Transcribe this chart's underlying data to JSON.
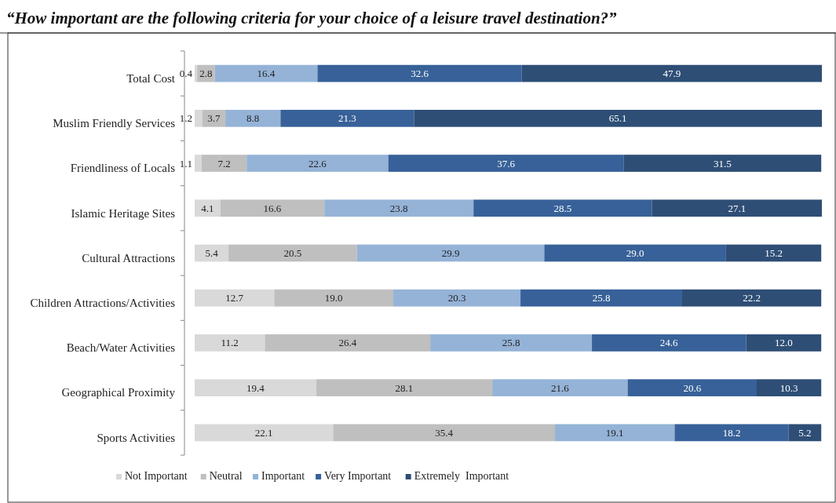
{
  "chart_data": {
    "type": "bar",
    "orientation": "horizontal",
    "stacked": true,
    "title": "“How important are the following criteria for your choice of a leisure travel destination?”",
    "categories": [
      "Total Cost",
      "Muslim Friendly Services",
      "Friendliness of Locals",
      "Islamic Heritage Sites",
      "Cultural Attractions",
      "Children Attractions/Activities",
      "Beach/Water Activities",
      "Geographical Proximity",
      "Sports Activities"
    ],
    "series": [
      {
        "name": "Not Important",
        "color": "#d9d9d9",
        "values": [
          0.4,
          1.2,
          1.1,
          4.1,
          5.4,
          12.7,
          11.2,
          19.4,
          22.1
        ],
        "value_labels": [
          "0.4",
          "1.2",
          "1.1",
          "4.1",
          "5.4",
          "12.7",
          "11.2",
          "19.4",
          "22.1"
        ]
      },
      {
        "name": "Neutral",
        "color": "#bfbfbf",
        "values": [
          2.8,
          3.7,
          7.2,
          16.6,
          20.5,
          19.0,
          26.4,
          28.1,
          35.4
        ],
        "value_labels": [
          "2.8",
          "3.7",
          "7.2",
          "16.6",
          "20.5",
          "19.0",
          "26.4",
          "28.1",
          "35.4"
        ]
      },
      {
        "name": "Important",
        "color": "#95b3d7",
        "values": [
          16.4,
          8.8,
          22.6,
          23.8,
          29.9,
          20.3,
          25.8,
          21.6,
          19.1
        ],
        "value_labels": [
          "16.4",
          "8.8",
          "22.6",
          "23.8",
          "29.9",
          "20.3",
          "25.8",
          "21.6",
          "19.1"
        ]
      },
      {
        "name": "Very Important",
        "color": "#376198",
        "values": [
          32.6,
          21.3,
          37.6,
          28.5,
          29.0,
          25.8,
          24.6,
          20.6,
          18.2
        ],
        "value_labels": [
          "32.6",
          "21.3",
          "37.6",
          "28.5",
          "29.0",
          "25.8",
          "24.6",
          "20.6",
          "18.2"
        ]
      },
      {
        "name": "Extremely  Important",
        "color": "#2e4e76",
        "values": [
          47.9,
          65.1,
          31.5,
          27.1,
          15.2,
          22.2,
          12.0,
          10.3,
          5.2
        ],
        "value_labels": [
          "47.9",
          "65.1",
          "31.5",
          "27.1",
          "15.2",
          "22.2",
          "12.0",
          "10.3",
          "5.2"
        ]
      }
    ],
    "legend": "bottom"
  }
}
